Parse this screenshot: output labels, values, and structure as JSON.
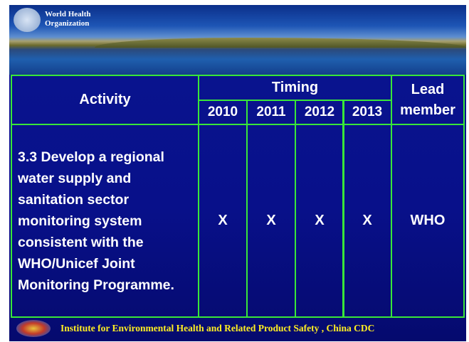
{
  "header": {
    "logo_line1": "World Health",
    "logo_line2": "Organization"
  },
  "table": {
    "col_activity": "Activity",
    "col_timing": "Timing",
    "years": [
      "2010",
      "2011",
      "2012",
      "2013"
    ],
    "col_lead": "Lead member",
    "rows": [
      [
        "3.3 Develop a regional water supply and sanitation sector monitoring system consistent with the WHO/Unicef Joint Monitoring Programme.",
        "X",
        "X",
        "X",
        "X",
        "WHO"
      ]
    ]
  },
  "footer": {
    "text": "Institute for Environmental Health and Related Product Safety , China CDC"
  }
}
